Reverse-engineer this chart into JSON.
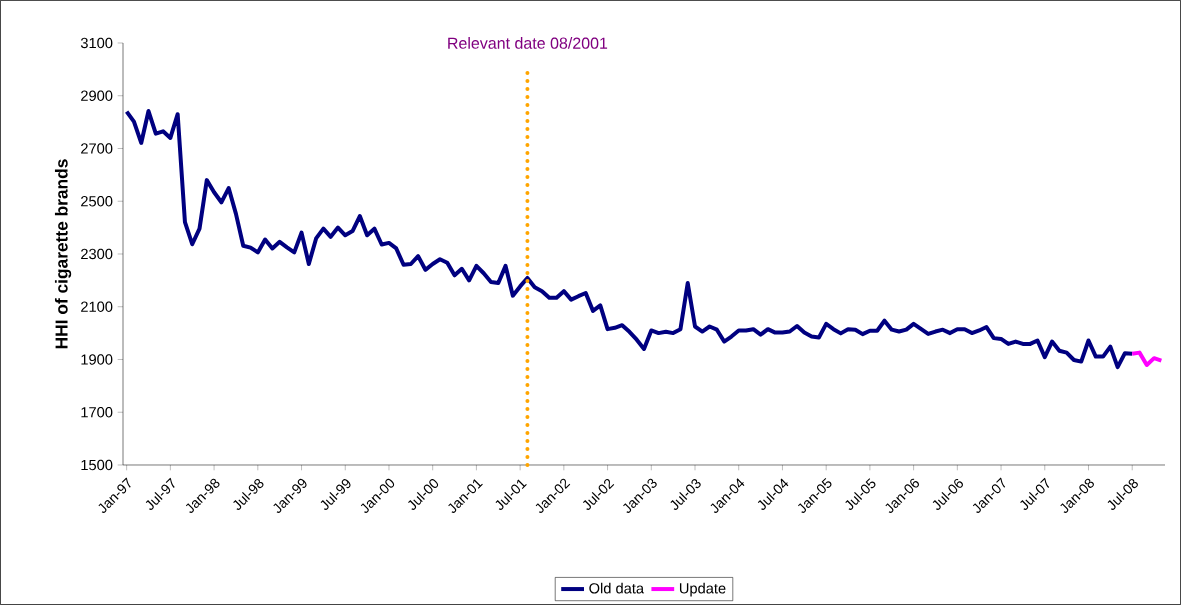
{
  "chart_data": {
    "type": "line",
    "ylabel": "HHI of cigarette brands",
    "x": [
      "1997-01",
      "1997-02",
      "1997-03",
      "1997-04",
      "1997-05",
      "1997-06",
      "1997-07",
      "1997-08",
      "1997-09",
      "1997-10",
      "1997-11",
      "1997-12",
      "1998-01",
      "1998-02",
      "1998-03",
      "1998-04",
      "1998-05",
      "1998-06",
      "1998-07",
      "1998-08",
      "1998-09",
      "1998-10",
      "1998-11",
      "1998-12",
      "1999-01",
      "1999-02",
      "1999-03",
      "1999-04",
      "1999-05",
      "1999-06",
      "1999-07",
      "1999-08",
      "1999-09",
      "1999-10",
      "1999-11",
      "1999-12",
      "2000-01",
      "2000-02",
      "2000-03",
      "2000-04",
      "2000-05",
      "2000-06",
      "2000-07",
      "2000-08",
      "2000-09",
      "2000-10",
      "2000-11",
      "2000-12",
      "2001-01",
      "2001-02",
      "2001-03",
      "2001-04",
      "2001-05",
      "2001-06",
      "2001-07",
      "2001-08",
      "2001-09",
      "2001-10",
      "2001-11",
      "2001-12",
      "2002-01",
      "2002-02",
      "2002-03",
      "2002-04",
      "2002-05",
      "2002-06",
      "2002-07",
      "2002-08",
      "2002-09",
      "2002-10",
      "2002-11",
      "2002-12",
      "2003-01",
      "2003-02",
      "2003-03",
      "2003-04",
      "2003-05",
      "2003-06",
      "2003-07",
      "2003-08",
      "2003-09",
      "2003-10",
      "2003-11",
      "2003-12",
      "2004-01",
      "2004-02",
      "2004-03",
      "2004-04",
      "2004-05",
      "2004-06",
      "2004-07",
      "2004-08",
      "2004-09",
      "2004-10",
      "2004-11",
      "2004-12",
      "2005-01",
      "2005-02",
      "2005-03",
      "2005-04",
      "2005-05",
      "2005-06",
      "2005-07",
      "2005-08",
      "2005-09",
      "2005-10",
      "2005-11",
      "2005-12",
      "2006-01",
      "2006-02",
      "2006-03",
      "2006-04",
      "2006-05",
      "2006-06",
      "2006-07",
      "2006-08",
      "2006-09",
      "2006-10",
      "2006-11",
      "2006-12",
      "2007-01",
      "2007-02",
      "2007-03",
      "2007-04",
      "2007-05",
      "2007-06",
      "2007-07",
      "2007-08",
      "2007-09",
      "2007-10",
      "2007-11",
      "2007-12",
      "2008-01",
      "2008-02",
      "2008-03",
      "2008-04",
      "2008-05",
      "2008-06",
      "2008-07",
      "2008-08",
      "2008-09",
      "2008-10",
      "2008-11"
    ],
    "series": [
      {
        "name": "Old data",
        "color": "#000080",
        "values": [
          2840,
          2802,
          2721,
          2842,
          2756,
          2765,
          2740,
          2830,
          2421,
          2337,
          2396,
          2580,
          2534,
          2496,
          2550,
          2452,
          2331,
          2324,
          2306,
          2355,
          2321,
          2346,
          2325,
          2306,
          2381,
          2262,
          2359,
          2396,
          2365,
          2400,
          2371,
          2387,
          2444,
          2371,
          2396,
          2336,
          2342,
          2321,
          2259,
          2262,
          2292,
          2240,
          2262,
          2280,
          2267,
          2219,
          2244,
          2200,
          2255,
          2227,
          2194,
          2190,
          2255,
          2142,
          2177,
          2209,
          2174,
          2159,
          2134,
          2134,
          2159,
          2127,
          2140,
          2152,
          2084,
          2105,
          2015,
          2020,
          2030,
          2005,
          1975,
          1940,
          2010,
          2000,
          2005,
          2000,
          2015,
          2190,
          2025,
          2006,
          2025,
          2013,
          1968,
          1987,
          2010,
          2010,
          2015,
          1994,
          2015,
          2002,
          2002,
          2006,
          2027,
          2002,
          1987,
          1983,
          2035,
          2015,
          1999,
          2015,
          2013,
          1996,
          2009,
          2009,
          2047,
          2013,
          2006,
          2013,
          2035,
          2016,
          1997,
          2006,
          2013,
          2000,
          2015,
          2015,
          2000,
          2010,
          2023,
          1981,
          1978,
          1959,
          1968,
          1959,
          1959,
          1972,
          1909,
          1968,
          1933,
          1926,
          1898,
          1892,
          1972,
          1911,
          1911,
          1949,
          1871,
          1924,
          1922,
          null,
          null,
          null,
          null
        ]
      },
      {
        "name": "Update",
        "color": "#ff00ff",
        "values": [
          null,
          null,
          null,
          null,
          null,
          null,
          null,
          null,
          null,
          null,
          null,
          null,
          null,
          null,
          null,
          null,
          null,
          null,
          null,
          null,
          null,
          null,
          null,
          null,
          null,
          null,
          null,
          null,
          null,
          null,
          null,
          null,
          null,
          null,
          null,
          null,
          null,
          null,
          null,
          null,
          null,
          null,
          null,
          null,
          null,
          null,
          null,
          null,
          null,
          null,
          null,
          null,
          null,
          null,
          null,
          null,
          null,
          null,
          null,
          null,
          null,
          null,
          null,
          null,
          null,
          null,
          null,
          null,
          null,
          null,
          null,
          null,
          null,
          null,
          null,
          null,
          null,
          null,
          null,
          null,
          null,
          null,
          null,
          null,
          null,
          null,
          null,
          null,
          null,
          null,
          null,
          null,
          null,
          null,
          null,
          null,
          null,
          null,
          null,
          null,
          null,
          null,
          null,
          null,
          null,
          null,
          null,
          null,
          null,
          null,
          null,
          null,
          null,
          null,
          null,
          null,
          null,
          null,
          null,
          null,
          null,
          null,
          null,
          null,
          null,
          null,
          null,
          null,
          null,
          null,
          null,
          null,
          null,
          null,
          null,
          null,
          null,
          null,
          1922,
          1926,
          1879,
          1905,
          1896
        ]
      }
    ],
    "xlim": [
      "1996-12-16",
      "2008-11-16"
    ],
    "xticks": [
      {
        "value": "1997-01",
        "label": "Jan-97"
      },
      {
        "value": "1997-07",
        "label": "Jul-97"
      },
      {
        "value": "1998-01",
        "label": "Jan-98"
      },
      {
        "value": "1998-07",
        "label": "Jul-98"
      },
      {
        "value": "1999-01",
        "label": "Jan-99"
      },
      {
        "value": "1999-07",
        "label": "Jul-99"
      },
      {
        "value": "2000-01",
        "label": "Jan-00"
      },
      {
        "value": "2000-07",
        "label": "Jul-00"
      },
      {
        "value": "2001-01",
        "label": "Jan-01"
      },
      {
        "value": "2001-07",
        "label": "Jul-01"
      },
      {
        "value": "2002-01",
        "label": "Jan-02"
      },
      {
        "value": "2002-07",
        "label": "Jul-02"
      },
      {
        "value": "2003-01",
        "label": "Jan-03"
      },
      {
        "value": "2003-07",
        "label": "Jul-03"
      },
      {
        "value": "2004-01",
        "label": "Jan-04"
      },
      {
        "value": "2004-07",
        "label": "Jul-04"
      },
      {
        "value": "2005-01",
        "label": "Jan-05"
      },
      {
        "value": "2005-07",
        "label": "Jul-05"
      },
      {
        "value": "2006-01",
        "label": "Jan-06"
      },
      {
        "value": "2006-07",
        "label": "Jul-06"
      },
      {
        "value": "2007-01",
        "label": "Jan-07"
      },
      {
        "value": "2007-07",
        "label": "Jul-07"
      },
      {
        "value": "2008-01",
        "label": "Jan-08"
      },
      {
        "value": "2008-07",
        "label": "Jul-08"
      }
    ],
    "ylim": [
      1500,
      3100
    ],
    "yticks": [
      1500,
      1700,
      1900,
      2100,
      2300,
      2500,
      2700,
      2900,
      3100
    ],
    "ref_lines": [
      {
        "axis": "x",
        "value": "2001-08",
        "label": "Relevant date 08/2001",
        "color": "#ffa500",
        "line_style": "dotted"
      }
    ],
    "grid": false,
    "legend": "bottom",
    "marker": "none",
    "line_style": "solid"
  }
}
